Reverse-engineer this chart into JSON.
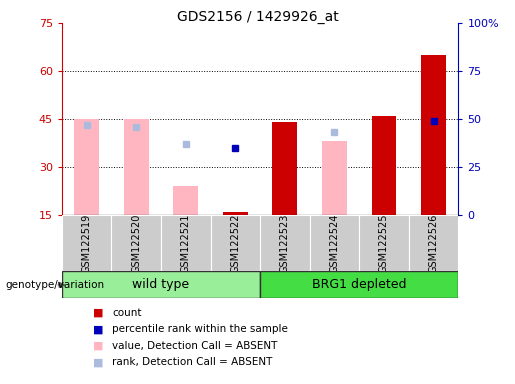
{
  "title": "GDS2156 / 1429926_at",
  "samples": [
    "GSM122519",
    "GSM122520",
    "GSM122521",
    "GSM122522",
    "GSM122523",
    "GSM122524",
    "GSM122525",
    "GSM122526"
  ],
  "ylim_left": [
    15,
    75
  ],
  "ylim_right": [
    0,
    100
  ],
  "yticks_left": [
    15,
    30,
    45,
    60,
    75
  ],
  "yticks_right": [
    0,
    25,
    50,
    75,
    100
  ],
  "ytick_labels_right": [
    "0",
    "25",
    "50",
    "75",
    "100%"
  ],
  "red_bars": [
    null,
    null,
    null,
    16,
    44,
    null,
    46,
    65
  ],
  "blue_squares_right": [
    null,
    null,
    null,
    35,
    null,
    null,
    null,
    49
  ],
  "pink_bars": [
    45,
    45,
    24,
    null,
    null,
    38,
    null,
    null
  ],
  "lightblue_squares_right": [
    47,
    46,
    37,
    null,
    null,
    43,
    null,
    null
  ],
  "bar_width": 0.5,
  "red_color": "#CC0000",
  "blue_color": "#0000BB",
  "pink_color": "#FFB6C1",
  "lightblue_color": "#AABBDD",
  "left_axis_color": "#CC0000",
  "right_axis_color": "#0000BB",
  "wt_color": "#99EE99",
  "brg_color": "#44DD44",
  "sample_bg": "#CCCCCC",
  "genotype_label": "genotype/variation",
  "legend_items": [
    "count",
    "percentile rank within the sample",
    "value, Detection Call = ABSENT",
    "rank, Detection Call = ABSENT"
  ],
  "grid_yticks": [
    30,
    45,
    60
  ]
}
